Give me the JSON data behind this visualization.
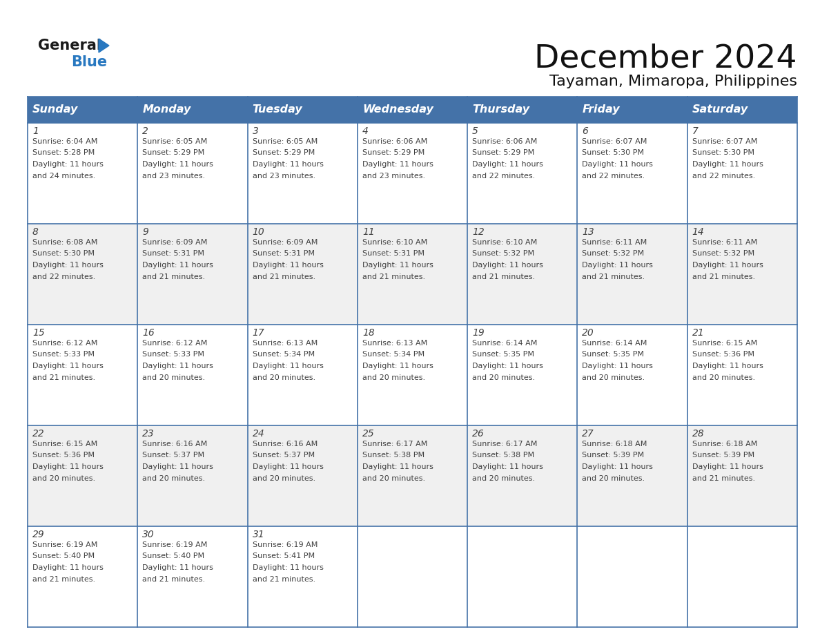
{
  "title": "December 2024",
  "subtitle": "Tayaman, Mimaropa, Philippines",
  "header_color": "#4472A8",
  "header_text_color": "#FFFFFF",
  "header_font_size": 11.5,
  "day_names": [
    "Sunday",
    "Monday",
    "Tuesday",
    "Wednesday",
    "Thursday",
    "Friday",
    "Saturday"
  ],
  "weeks": [
    [
      {
        "day": "1",
        "sunrise": "6:04 AM",
        "sunset": "5:28 PM",
        "daylight_h": "11 hours",
        "daylight_m": "24 minutes"
      },
      {
        "day": "2",
        "sunrise": "6:05 AM",
        "sunset": "5:29 PM",
        "daylight_h": "11 hours",
        "daylight_m": "23 minutes"
      },
      {
        "day": "3",
        "sunrise": "6:05 AM",
        "sunset": "5:29 PM",
        "daylight_h": "11 hours",
        "daylight_m": "23 minutes"
      },
      {
        "day": "4",
        "sunrise": "6:06 AM",
        "sunset": "5:29 PM",
        "daylight_h": "11 hours",
        "daylight_m": "23 minutes"
      },
      {
        "day": "5",
        "sunrise": "6:06 AM",
        "sunset": "5:29 PM",
        "daylight_h": "11 hours",
        "daylight_m": "22 minutes"
      },
      {
        "day": "6",
        "sunrise": "6:07 AM",
        "sunset": "5:30 PM",
        "daylight_h": "11 hours",
        "daylight_m": "22 minutes"
      },
      {
        "day": "7",
        "sunrise": "6:07 AM",
        "sunset": "5:30 PM",
        "daylight_h": "11 hours",
        "daylight_m": "22 minutes"
      }
    ],
    [
      {
        "day": "8",
        "sunrise": "6:08 AM",
        "sunset": "5:30 PM",
        "daylight_h": "11 hours",
        "daylight_m": "22 minutes"
      },
      {
        "day": "9",
        "sunrise": "6:09 AM",
        "sunset": "5:31 PM",
        "daylight_h": "11 hours",
        "daylight_m": "21 minutes"
      },
      {
        "day": "10",
        "sunrise": "6:09 AM",
        "sunset": "5:31 PM",
        "daylight_h": "11 hours",
        "daylight_m": "21 minutes"
      },
      {
        "day": "11",
        "sunrise": "6:10 AM",
        "sunset": "5:31 PM",
        "daylight_h": "11 hours",
        "daylight_m": "21 minutes"
      },
      {
        "day": "12",
        "sunrise": "6:10 AM",
        "sunset": "5:32 PM",
        "daylight_h": "11 hours",
        "daylight_m": "21 minutes"
      },
      {
        "day": "13",
        "sunrise": "6:11 AM",
        "sunset": "5:32 PM",
        "daylight_h": "11 hours",
        "daylight_m": "21 minutes"
      },
      {
        "day": "14",
        "sunrise": "6:11 AM",
        "sunset": "5:32 PM",
        "daylight_h": "11 hours",
        "daylight_m": "21 minutes"
      }
    ],
    [
      {
        "day": "15",
        "sunrise": "6:12 AM",
        "sunset": "5:33 PM",
        "daylight_h": "11 hours",
        "daylight_m": "21 minutes"
      },
      {
        "day": "16",
        "sunrise": "6:12 AM",
        "sunset": "5:33 PM",
        "daylight_h": "11 hours",
        "daylight_m": "20 minutes"
      },
      {
        "day": "17",
        "sunrise": "6:13 AM",
        "sunset": "5:34 PM",
        "daylight_h": "11 hours",
        "daylight_m": "20 minutes"
      },
      {
        "day": "18",
        "sunrise": "6:13 AM",
        "sunset": "5:34 PM",
        "daylight_h": "11 hours",
        "daylight_m": "20 minutes"
      },
      {
        "day": "19",
        "sunrise": "6:14 AM",
        "sunset": "5:35 PM",
        "daylight_h": "11 hours",
        "daylight_m": "20 minutes"
      },
      {
        "day": "20",
        "sunrise": "6:14 AM",
        "sunset": "5:35 PM",
        "daylight_h": "11 hours",
        "daylight_m": "20 minutes"
      },
      {
        "day": "21",
        "sunrise": "6:15 AM",
        "sunset": "5:36 PM",
        "daylight_h": "11 hours",
        "daylight_m": "20 minutes"
      }
    ],
    [
      {
        "day": "22",
        "sunrise": "6:15 AM",
        "sunset": "5:36 PM",
        "daylight_h": "11 hours",
        "daylight_m": "20 minutes"
      },
      {
        "day": "23",
        "sunrise": "6:16 AM",
        "sunset": "5:37 PM",
        "daylight_h": "11 hours",
        "daylight_m": "20 minutes"
      },
      {
        "day": "24",
        "sunrise": "6:16 AM",
        "sunset": "5:37 PM",
        "daylight_h": "11 hours",
        "daylight_m": "20 minutes"
      },
      {
        "day": "25",
        "sunrise": "6:17 AM",
        "sunset": "5:38 PM",
        "daylight_h": "11 hours",
        "daylight_m": "20 minutes"
      },
      {
        "day": "26",
        "sunrise": "6:17 AM",
        "sunset": "5:38 PM",
        "daylight_h": "11 hours",
        "daylight_m": "20 minutes"
      },
      {
        "day": "27",
        "sunrise": "6:18 AM",
        "sunset": "5:39 PM",
        "daylight_h": "11 hours",
        "daylight_m": "20 minutes"
      },
      {
        "day": "28",
        "sunrise": "6:18 AM",
        "sunset": "5:39 PM",
        "daylight_h": "11 hours",
        "daylight_m": "21 minutes"
      }
    ],
    [
      {
        "day": "29",
        "sunrise": "6:19 AM",
        "sunset": "5:40 PM",
        "daylight_h": "11 hours",
        "daylight_m": "21 minutes"
      },
      {
        "day": "30",
        "sunrise": "6:19 AM",
        "sunset": "5:40 PM",
        "daylight_h": "11 hours",
        "daylight_m": "21 minutes"
      },
      {
        "day": "31",
        "sunrise": "6:19 AM",
        "sunset": "5:41 PM",
        "daylight_h": "11 hours",
        "daylight_m": "21 minutes"
      },
      null,
      null,
      null,
      null
    ]
  ],
  "cell_bg_even": "#FFFFFF",
  "cell_bg_odd": "#F0F0F0",
  "border_color": "#4472A8",
  "text_color": "#404040",
  "day_num_fontsize": 10,
  "cell_text_fontsize": 8,
  "logo_general_color": "#1A1A1A",
  "logo_blue_color": "#2878C0",
  "logo_triangle_color": "#2878C0",
  "title_fontsize": 34,
  "subtitle_fontsize": 16
}
